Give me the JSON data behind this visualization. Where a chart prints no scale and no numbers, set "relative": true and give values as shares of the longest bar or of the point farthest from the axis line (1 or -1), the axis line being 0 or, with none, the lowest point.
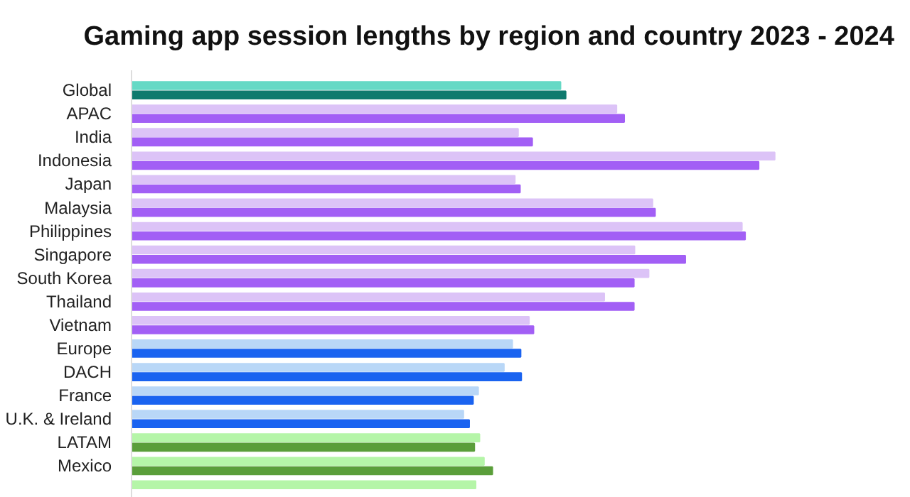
{
  "chart_data": {
    "type": "bar",
    "orientation": "horizontal",
    "relative": true,
    "title": "Gaming app  session lengths by region and country 2023 - 2024",
    "categories": [
      "Global",
      "APAC",
      "India",
      "Indonesia",
      "Japan",
      "Malaysia",
      "Philippines",
      "Singapore",
      "South Korea",
      "Thailand",
      "Vietnam",
      "Europe",
      "DACH",
      "France",
      "U.K. & Ireland",
      "LATAM",
      "Mexico",
      null
    ],
    "series": [
      {
        "values": [
          0.667,
          0.754,
          0.601,
          1.0,
          0.596,
          0.81,
          0.949,
          0.782,
          0.804,
          0.735,
          0.618,
          0.592,
          0.579,
          0.539,
          0.516,
          0.541,
          0.548,
          0.535
        ],
        "colors": [
          "#66d9c5",
          "#dcc3f7",
          "#dcc3f7",
          "#dcc3f7",
          "#dcc3f7",
          "#dcc3f7",
          "#dcc3f7",
          "#dcc3f7",
          "#dcc3f7",
          "#dcc3f7",
          "#dcc3f7",
          "#b9d7f7",
          "#b9d7f7",
          "#b9d7f7",
          "#b9d7f7",
          "#b5f5a8",
          "#b5f5a8",
          "#b5f5a8"
        ]
      },
      {
        "values": [
          0.675,
          0.766,
          0.623,
          0.975,
          0.604,
          0.814,
          0.954,
          0.861,
          0.781,
          0.781,
          0.625,
          0.605,
          0.606,
          0.531,
          0.525,
          0.533,
          0.561,
          null
        ],
        "colors": [
          "#0f7a6e",
          "#a25ff5",
          "#a25ff5",
          "#a25ff5",
          "#a25ff5",
          "#a25ff5",
          "#a25ff5",
          "#a25ff5",
          "#a25ff5",
          "#a25ff5",
          "#a25ff5",
          "#1a63f0",
          "#1a63f0",
          "#1a63f0",
          "#1a63f0",
          "#5a9e3a",
          "#5a9e3a",
          "#5a9e3a"
        ]
      }
    ]
  }
}
